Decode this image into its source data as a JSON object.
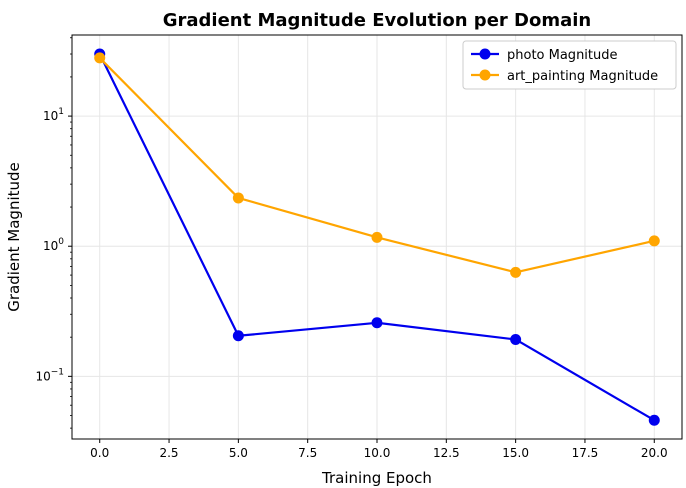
{
  "chart_data": {
    "type": "line",
    "title": "Gradient Magnitude Evolution per Domain",
    "xlabel": "Training Epoch",
    "ylabel": "Gradient Magnitude",
    "x": [
      0,
      5,
      10,
      15,
      20
    ],
    "xlim": [
      -1,
      21
    ],
    "ylim": [
      0.033,
      42
    ],
    "yscale": "log",
    "xticks": [
      0.0,
      2.5,
      5.0,
      7.5,
      10.0,
      12.5,
      15.0,
      17.5,
      20.0
    ],
    "xtick_labels": [
      "0.0",
      "2.5",
      "5.0",
      "7.5",
      "10.0",
      "12.5",
      "15.0",
      "17.5",
      "20.0"
    ],
    "yticks_major": [
      {
        "value": 0.1,
        "base": "10",
        "exp": "−1"
      },
      {
        "value": 1,
        "base": "10",
        "exp": "0"
      },
      {
        "value": 10,
        "base": "10",
        "exp": "1"
      }
    ],
    "grid": true,
    "legend_position": "top-right",
    "series": [
      {
        "name": "photo Magnitude",
        "color": "#0000ee",
        "values": [
          30,
          0.205,
          0.258,
          0.192,
          0.046
        ]
      },
      {
        "name": "art_painting Magnitude",
        "color": "#ffa500",
        "values": [
          28,
          2.35,
          1.17,
          0.63,
          1.1
        ]
      }
    ]
  }
}
